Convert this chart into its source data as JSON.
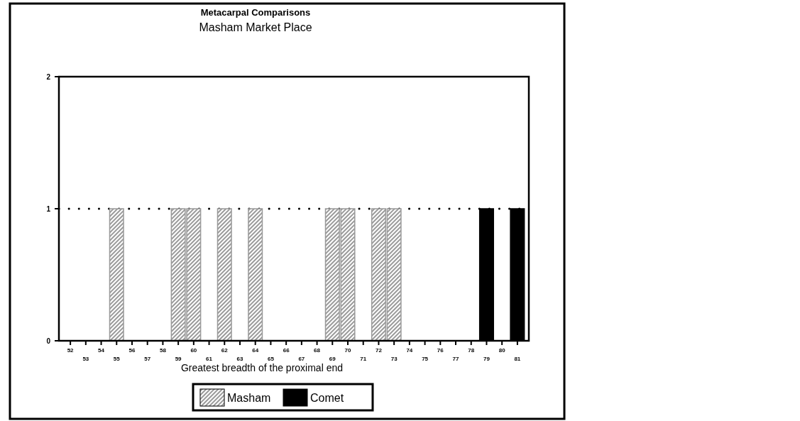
{
  "chart_data": {
    "type": "bar",
    "title": "Metacarpal Comparisons",
    "subtitle": "Masham Market Place",
    "xlabel": "Greatest breadth of the proximal end",
    "categories": [
      "52",
      "53",
      "54",
      "55",
      "56",
      "57",
      "58",
      "59",
      "60",
      "61",
      "62",
      "63",
      "64",
      "65",
      "66",
      "67",
      "68",
      "69",
      "70",
      "71",
      "72",
      "73",
      "74",
      "75",
      "76",
      "77",
      "78",
      "79",
      "80",
      "81"
    ],
    "series": [
      {
        "name": "Masham",
        "color": "#9a9a9a",
        "values": [
          0,
          0,
          0,
          1,
          0,
          0,
          0,
          1,
          1,
          0,
          1,
          0,
          1,
          0,
          0,
          0,
          0,
          1,
          1,
          0,
          1,
          1,
          0,
          0,
          0,
          0,
          0,
          0,
          0,
          0
        ]
      },
      {
        "name": "Comet",
        "color": "#000000",
        "values": [
          0,
          0,
          0,
          0,
          0,
          0,
          0,
          0,
          0,
          0,
          0,
          0,
          0,
          0,
          0,
          0,
          0,
          0,
          0,
          0,
          0,
          0,
          0,
          0,
          0,
          0,
          0,
          1,
          0,
          1
        ]
      }
    ],
    "ylim": [
      0,
      2
    ],
    "yticks": [
      0,
      1,
      2
    ],
    "grid": "y",
    "legend": "bottom"
  }
}
